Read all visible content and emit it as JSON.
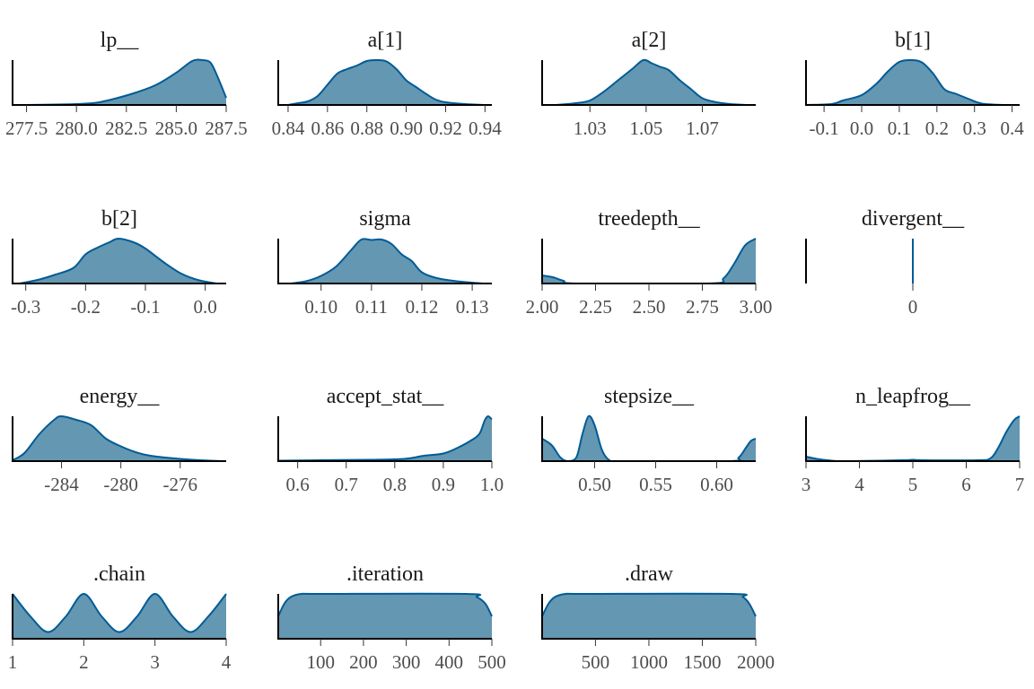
{
  "figure": {
    "fill_color": "#6497b1",
    "line_color": "#005b96",
    "axis_color": "#000000"
  },
  "chart_data": [
    {
      "type": "area",
      "title": "lp__",
      "xlim": [
        276.8,
        287.5
      ],
      "ticks": [
        277.5,
        280.0,
        282.5,
        285.0,
        287.5
      ],
      "tick_labels": [
        "277.5",
        "280.0",
        "282.5",
        "285.0",
        "287.5"
      ],
      "x": [
        277.5,
        279.0,
        280.0,
        281.0,
        282.0,
        283.0,
        284.0,
        285.0,
        285.8,
        286.3,
        286.7,
        287.0,
        287.5
      ],
      "y": [
        0.0,
        0.01,
        0.02,
        0.05,
        0.15,
        0.28,
        0.45,
        0.72,
        0.98,
        1.0,
        0.95,
        0.7,
        0.16
      ]
    },
    {
      "type": "area",
      "title": "a[1]",
      "xlim": [
        0.835,
        0.9435
      ],
      "ticks": [
        0.84,
        0.86,
        0.88,
        0.9,
        0.92,
        0.94
      ],
      "tick_labels": [
        "0.84",
        "0.86",
        "0.88",
        "0.90",
        "0.92",
        "0.94"
      ],
      "x": [
        0.84,
        0.845,
        0.85,
        0.855,
        0.86,
        0.865,
        0.87,
        0.875,
        0.88,
        0.885,
        0.89,
        0.895,
        0.9,
        0.905,
        0.91,
        0.915,
        0.92,
        0.93,
        0.94
      ],
      "y": [
        0.0,
        0.04,
        0.08,
        0.2,
        0.45,
        0.7,
        0.8,
        0.88,
        0.98,
        1.0,
        0.97,
        0.8,
        0.55,
        0.4,
        0.25,
        0.12,
        0.06,
        0.02,
        0.0
      ]
    },
    {
      "type": "area",
      "title": "a[2]",
      "xlim": [
        1.013,
        1.089
      ],
      "ticks": [
        1.03,
        1.05,
        1.07
      ],
      "tick_labels": [
        "1.03",
        "1.05",
        "1.07"
      ],
      "x": [
        1.018,
        1.025,
        1.03,
        1.035,
        1.04,
        1.045,
        1.049,
        1.052,
        1.055,
        1.058,
        1.062,
        1.066,
        1.07,
        1.075,
        1.08,
        1.086
      ],
      "y": [
        0.0,
        0.04,
        0.1,
        0.3,
        0.55,
        0.8,
        1.0,
        0.93,
        0.85,
        0.78,
        0.55,
        0.35,
        0.15,
        0.06,
        0.02,
        0.0
      ]
    },
    {
      "type": "area",
      "title": "b[1]",
      "xlim": [
        -0.148,
        0.42
      ],
      "ticks": [
        -0.1,
        0.0,
        0.1,
        0.2,
        0.3,
        0.4
      ],
      "tick_labels": [
        "-0.1",
        "0.0",
        "0.1",
        "0.2",
        "0.3",
        "0.4"
      ],
      "x": [
        -0.15,
        -0.08,
        -0.05,
        0.0,
        0.04,
        0.07,
        0.1,
        0.13,
        0.16,
        0.19,
        0.22,
        0.25,
        0.28,
        0.32,
        0.38
      ],
      "y": [
        0.0,
        0.02,
        0.1,
        0.22,
        0.48,
        0.75,
        0.96,
        1.0,
        0.95,
        0.7,
        0.35,
        0.25,
        0.15,
        0.03,
        0.0
      ]
    },
    {
      "type": "area",
      "title": "b[2]",
      "xlim": [
        -0.322,
        0.035
      ],
      "ticks": [
        -0.3,
        -0.2,
        -0.1,
        0.0
      ],
      "tick_labels": [
        "-0.3",
        "-0.2",
        "-0.1",
        "0.0"
      ],
      "x": [
        -0.31,
        -0.28,
        -0.25,
        -0.22,
        -0.2,
        -0.18,
        -0.16,
        -0.145,
        -0.12,
        -0.1,
        -0.07,
        -0.04,
        -0.01,
        0.02
      ],
      "y": [
        0.0,
        0.08,
        0.2,
        0.35,
        0.65,
        0.8,
        0.92,
        1.0,
        0.92,
        0.78,
        0.48,
        0.22,
        0.07,
        0.0
      ]
    },
    {
      "type": "area",
      "title": "sigma",
      "xlim": [
        0.0915,
        0.1339
      ],
      "ticks": [
        0.1,
        0.11,
        0.12,
        0.13
      ],
      "tick_labels": [
        "0.10",
        "0.11",
        "0.12",
        "0.13"
      ],
      "x": [
        0.094,
        0.097,
        0.1,
        0.103,
        0.106,
        0.108,
        0.11,
        0.112,
        0.114,
        0.116,
        0.118,
        0.12,
        0.123,
        0.127,
        0.132
      ],
      "y": [
        0.0,
        0.05,
        0.17,
        0.38,
        0.75,
        0.98,
        0.97,
        0.98,
        0.88,
        0.65,
        0.5,
        0.25,
        0.12,
        0.05,
        0.0
      ]
    },
    {
      "type": "area",
      "title": "treedepth__",
      "xlim": [
        2.0,
        3.0
      ],
      "ticks": [
        2.0,
        2.25,
        2.5,
        2.75,
        3.0
      ],
      "tick_labels": [
        "2.00",
        "2.25",
        "2.50",
        "2.75",
        "3.00"
      ],
      "x": [
        2.0,
        2.05,
        2.1,
        2.17,
        2.78,
        2.85,
        2.9,
        2.95,
        3.0
      ],
      "y": [
        0.18,
        0.14,
        0.06,
        0.0,
        0.0,
        0.12,
        0.45,
        0.85,
        1.0
      ]
    },
    {
      "type": "spike",
      "title": "divergent__",
      "xlim": [
        -1,
        1
      ],
      "ticks": [
        0
      ],
      "tick_labels": [
        "0"
      ],
      "x": [
        0
      ],
      "y": [
        1.0
      ]
    },
    {
      "type": "area",
      "title": "energy__",
      "xlim": [
        -287.3,
        -272.9
      ],
      "ticks": [
        -284,
        -280,
        -276
      ],
      "tick_labels": [
        "-284",
        "-280",
        "-276"
      ],
      "x": [
        -287.3,
        -286.5,
        -285.5,
        -284.5,
        -284.0,
        -283.0,
        -282.0,
        -281.0,
        -280.0,
        -279.0,
        -278.0,
        -276.0,
        -274.0,
        -272.9
      ],
      "y": [
        0.02,
        0.18,
        0.6,
        0.92,
        1.0,
        0.92,
        0.8,
        0.5,
        0.33,
        0.2,
        0.12,
        0.05,
        0.01,
        0.0
      ]
    },
    {
      "type": "area",
      "title": "accept_stat__",
      "xlim": [
        0.56,
        1.0
      ],
      "ticks": [
        0.6,
        0.7,
        0.8,
        0.9,
        1.0
      ],
      "tick_labels": [
        "0.6",
        "0.7",
        "0.8",
        "0.9",
        "1.0"
      ],
      "x": [
        0.56,
        0.64,
        0.75,
        0.82,
        0.86,
        0.9,
        0.93,
        0.96,
        0.975,
        0.985,
        0.992,
        1.0
      ],
      "y": [
        0.01,
        0.02,
        0.03,
        0.05,
        0.12,
        0.17,
        0.3,
        0.48,
        0.62,
        0.9,
        1.0,
        0.93
      ]
    },
    {
      "type": "area",
      "title": "stepsize__",
      "xlim": [
        0.457,
        0.632
      ],
      "ticks": [
        0.5,
        0.55,
        0.6
      ],
      "tick_labels": [
        "0.50",
        "0.55",
        "0.60"
      ],
      "x": [
        0.457,
        0.465,
        0.472,
        0.478,
        0.485,
        0.49,
        0.495,
        0.5,
        0.506,
        0.512,
        0.52,
        0.61,
        0.618,
        0.624,
        0.628,
        0.632
      ],
      "y": [
        0.5,
        0.35,
        0.08,
        0.0,
        0.08,
        0.6,
        1.0,
        0.8,
        0.25,
        0.02,
        0.0,
        0.0,
        0.08,
        0.3,
        0.45,
        0.5
      ]
    },
    {
      "type": "area",
      "title": "n_leapfrog__",
      "xlim": [
        3,
        7
      ],
      "ticks": [
        3,
        4,
        5,
        6,
        7
      ],
      "tick_labels": [
        "3",
        "4",
        "5",
        "6",
        "7"
      ],
      "x": [
        3.0,
        3.2,
        3.4,
        3.7,
        4.8,
        5.0,
        5.2,
        6.2,
        6.45,
        6.6,
        6.75,
        6.9,
        7.0
      ],
      "y": [
        0.1,
        0.05,
        0.02,
        0.0,
        0.02,
        0.03,
        0.02,
        0.02,
        0.06,
        0.3,
        0.65,
        0.92,
        1.0
      ]
    },
    {
      "type": "area",
      "title": ".chain",
      "xlim": [
        1,
        4
      ],
      "ticks": [
        1,
        2,
        3,
        4
      ],
      "tick_labels": [
        "1",
        "2",
        "3",
        "4"
      ],
      "x": [
        1.0,
        1.25,
        1.5,
        1.75,
        2.0,
        2.25,
        2.5,
        2.75,
        3.0,
        3.25,
        3.5,
        3.75,
        4.0
      ],
      "y": [
        1.0,
        0.5,
        0.15,
        0.5,
        1.0,
        0.5,
        0.15,
        0.5,
        1.0,
        0.5,
        0.15,
        0.5,
        1.0
      ]
    },
    {
      "type": "area",
      "title": ".iteration",
      "xlim": [
        1,
        500
      ],
      "ticks": [
        100,
        200,
        300,
        400,
        500
      ],
      "tick_labels": [
        "100",
        "200",
        "300",
        "400",
        "500"
      ],
      "x": [
        1,
        15,
        30,
        55,
        100,
        440,
        465,
        485,
        500
      ],
      "y": [
        0.5,
        0.78,
        0.93,
        1.0,
        1.0,
        1.0,
        0.93,
        0.78,
        0.5
      ]
    },
    {
      "type": "area",
      "title": ".draw",
      "xlim": [
        1,
        2000
      ],
      "ticks": [
        500,
        1000,
        1500,
        2000
      ],
      "tick_labels": [
        "500",
        "1000",
        "1500",
        "2000"
      ],
      "x": [
        1,
        60,
        120,
        220,
        400,
        1780,
        1880,
        1940,
        2000
      ],
      "y": [
        0.5,
        0.78,
        0.93,
        1.0,
        1.0,
        1.0,
        0.93,
        0.78,
        0.5
      ]
    }
  ]
}
